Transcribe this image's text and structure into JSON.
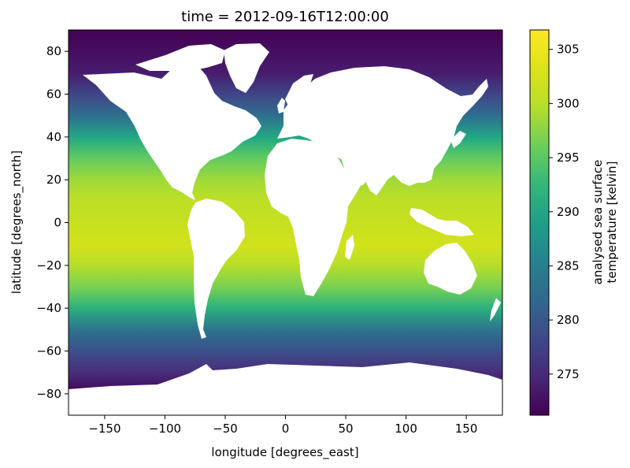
{
  "title": "time = 2012-09-16T12:00:00",
  "chart_data": {
    "type": "heatmap",
    "title": "time = 2012-09-16T12:00:00",
    "xlabel": "longitude [degrees_east]",
    "ylabel": "latitude [degrees_north]",
    "xlim": [
      -180,
      180
    ],
    "ylim": [
      -90,
      90
    ],
    "x_ticks": [
      -150,
      -100,
      -50,
      0,
      50,
      100,
      150
    ],
    "y_ticks": [
      -80,
      -60,
      -40,
      -20,
      0,
      20,
      40,
      60,
      80
    ],
    "x_tick_labels": [
      "−150",
      "−100",
      "−50",
      "0",
      "50",
      "100",
      "150"
    ],
    "y_tick_labels": [
      "−80",
      "−60",
      "−40",
      "−20",
      "0",
      "20",
      "40",
      "60",
      "80"
    ],
    "colorbar": {
      "label_lines": [
        "analysed sea surface",
        "temperature [kelvin]"
      ],
      "colormap": "viridis",
      "range": [
        271.2,
        306.8
      ],
      "ticks": [
        275,
        280,
        285,
        290,
        295,
        300,
        305
      ],
      "tick_labels": [
        "275",
        "280",
        "285",
        "290",
        "295",
        "300",
        "305"
      ]
    },
    "field_profile": {
      "latitude": [
        -90,
        -78,
        -70,
        -60,
        -50,
        -40,
        -30,
        -20,
        -10,
        0,
        10,
        20,
        30,
        40,
        50,
        60,
        70,
        80,
        90
      ],
      "temperature_k": [
        271.4,
        271.5,
        272.0,
        273.5,
        278.0,
        284.0,
        290.5,
        296.0,
        300.0,
        301.5,
        302.0,
        300.5,
        297.5,
        292.0,
        284.0,
        278.0,
        274.5,
        272.0,
        271.5
      ]
    },
    "land_mask_color": "#ffffff"
  }
}
